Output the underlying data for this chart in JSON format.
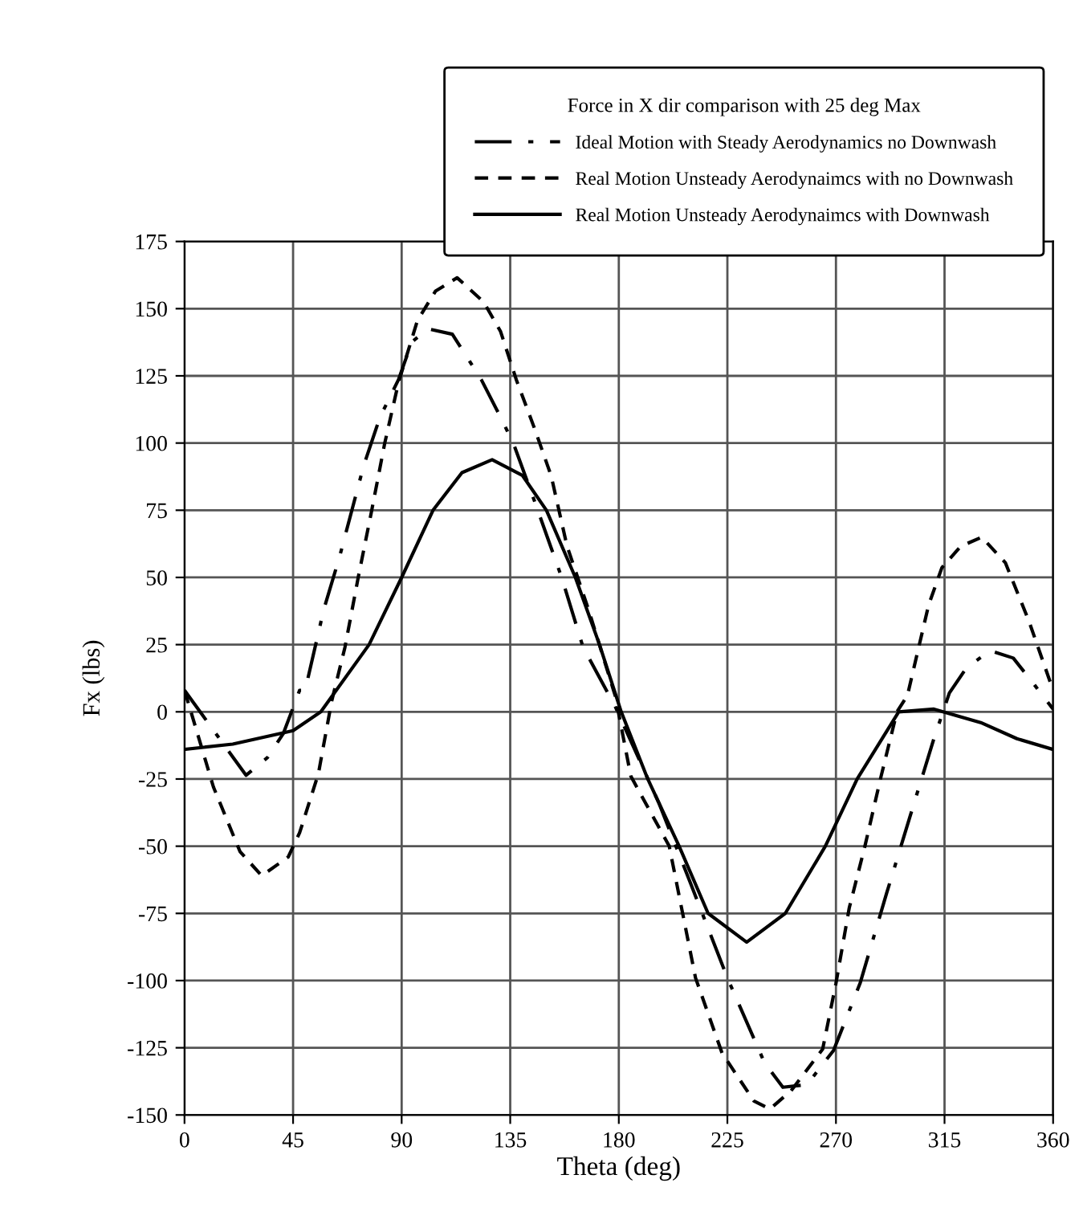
{
  "chart_data": {
    "type": "line",
    "xlabel": "Theta (deg)",
    "ylabel": "Fx (lbs)",
    "legend_title": "Force in X dir comparison with 25 deg Max",
    "legend": "top right",
    "grid": true,
    "marker": "none",
    "xlim": [
      0,
      360
    ],
    "ylim": [
      -150,
      175
    ],
    "xticks": [
      0,
      45,
      90,
      135,
      180,
      225,
      270,
      315,
      360
    ],
    "yticks": [
      -150,
      -125,
      -100,
      -75,
      -50,
      -25,
      0,
      25,
      50,
      75,
      100,
      125,
      150,
      175
    ],
    "series": [
      {
        "name": "Ideal Motion with Steady Aerodynamics no Downwash",
        "color": "#000000",
        "line_style": "dashdot",
        "x": [
          0,
          25.5,
          34.4,
          41,
          47.7,
          50,
          57.7,
          64.3,
          74.3,
          81,
          88.7,
          94.2,
          101,
          111,
          123,
          131,
          136.4,
          145.3,
          156.4,
          165.2,
          178.5,
          196.5,
          209.6,
          225,
          240.4,
          248,
          258,
          269,
          280,
          291,
          301.8,
          310.6,
          317,
          323.8,
          333.7,
          343.5,
          352.3,
          360
        ],
        "values": [
          8,
          -23.6,
          -17,
          -8,
          8,
          8,
          38,
          57.8,
          91.7,
          109.6,
          123.6,
          137.6,
          142.5,
          140.5,
          123.6,
          109.6,
          99.7,
          77.8,
          49.8,
          24,
          2,
          -33.7,
          -63.5,
          -99,
          -130.6,
          -139.7,
          -138.7,
          -126,
          -101,
          -67.5,
          -35.7,
          -10,
          7,
          16,
          22.8,
          20,
          10,
          1
        ]
      },
      {
        "name": "Real Motion Unsteady Aerodynaimcs with no Downwash",
        "color": "#000000",
        "line_style": "dashed",
        "x": [
          0,
          12,
          23,
          32,
          43,
          47.7,
          55.5,
          61,
          66.5,
          72,
          77.6,
          83,
          88.7,
          96.5,
          104,
          113,
          124,
          131,
          137.5,
          145,
          152,
          158.5,
          167.5,
          178.5,
          185,
          200.9,
          211.8,
          222.8,
          236,
          242.6,
          251.4,
          264.5,
          270,
          275.5,
          282,
          288.7,
          295.3,
          299.6,
          308.4,
          313.9,
          321.6,
          330.4,
          340.2,
          350,
          360
        ],
        "values": [
          8,
          -28,
          -52,
          -61,
          -54,
          -45,
          -23,
          4,
          24,
          50,
          75,
          100,
          122.6,
          145.5,
          156.5,
          161.5,
          152.5,
          141.5,
          123.6,
          105.6,
          87.7,
          61.8,
          37.9,
          6,
          -24,
          -50,
          -99,
          -127,
          -144.8,
          -147.8,
          -141,
          -125.5,
          -101,
          -73,
          -50,
          -24,
          0,
          6,
          39.7,
          53.6,
          61.5,
          65,
          55.5,
          33.7,
          8
        ]
      },
      {
        "name": "Real Motion Unsteady Aerodynaimcs with Downwash",
        "color": "#000000",
        "line_style": "solid",
        "x": [
          0,
          20,
          45,
          56.5,
          76.5,
          90,
          103,
          115,
          127.5,
          140,
          150,
          162,
          172,
          181,
          192,
          205,
          217,
          233,
          249,
          265.6,
          278.8,
          296,
          310.6,
          330,
          345,
          360
        ],
        "values": [
          -14,
          -12,
          -7,
          0,
          25,
          50,
          75,
          89,
          93.8,
          88,
          75,
          50,
          25,
          0,
          -25,
          -50,
          -75,
          -85.7,
          -75,
          -50,
          -25,
          0,
          1,
          -4,
          -10,
          -14
        ]
      }
    ]
  }
}
